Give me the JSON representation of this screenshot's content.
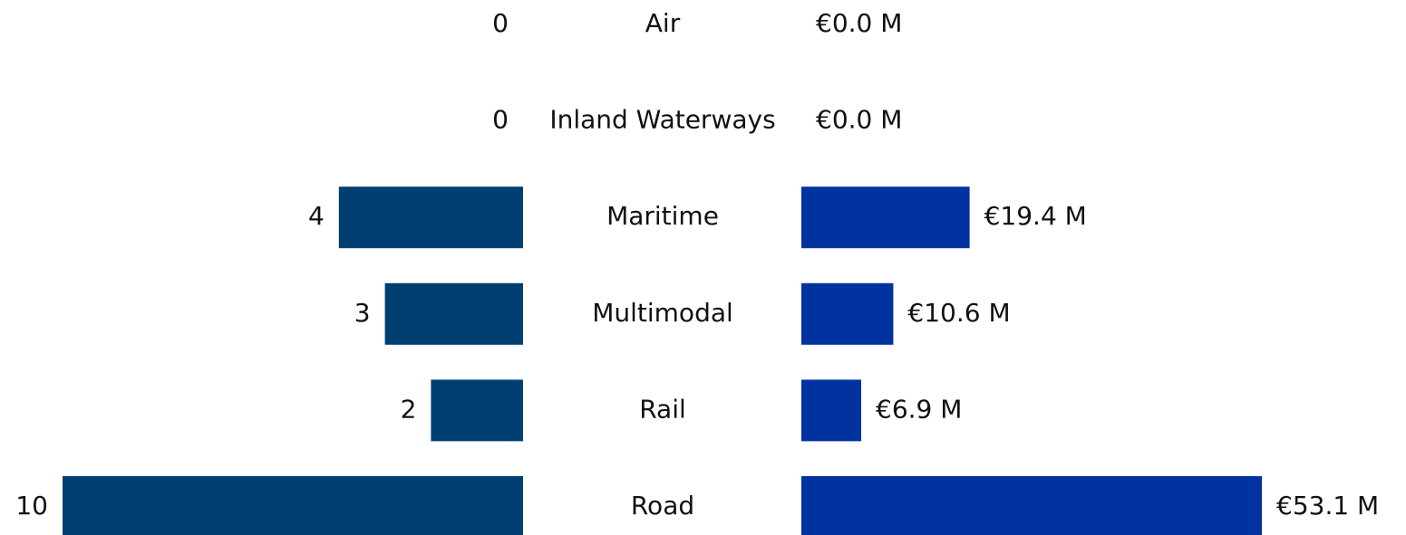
{
  "chart_data": {
    "type": "butterfly-bar",
    "categories": [
      "Air",
      "Inland Waterways",
      "Maritime",
      "Multimodal",
      "Rail",
      "Road"
    ],
    "series": [
      {
        "color": "#003f72",
        "values": [
          0,
          0,
          4,
          3,
          2,
          10
        ]
      },
      {
        "color": "#0033a0",
        "values": [
          0,
          0,
          19.4,
          10.6,
          6.9,
          53.1
        ],
        "value_labels": [
          "€0.0 M",
          "€0.0 M",
          "€19.4 M",
          "€10.6 M",
          "€6.9 M",
          "€53.1 M"
        ]
      }
    ]
  }
}
